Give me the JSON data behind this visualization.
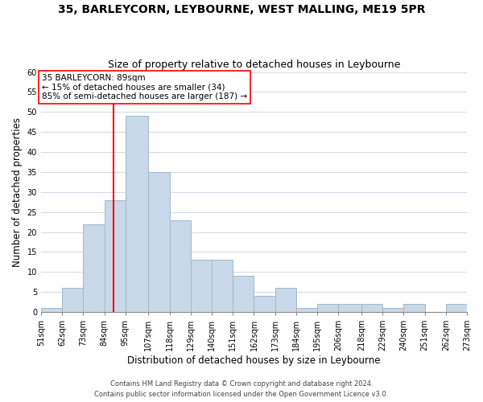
{
  "title": "35, BARLEYCORN, LEYBOURNE, WEST MALLING, ME19 5PR",
  "subtitle": "Size of property relative to detached houses in Leybourne",
  "xlabel": "Distribution of detached houses by size in Leybourne",
  "ylabel": "Number of detached properties",
  "bar_edges": [
    51,
    62,
    73,
    84,
    95,
    107,
    118,
    129,
    140,
    151,
    162,
    173,
    184,
    195,
    206,
    218,
    229,
    240,
    251,
    262,
    273
  ],
  "bar_heights": [
    1,
    6,
    22,
    28,
    49,
    35,
    23,
    13,
    13,
    9,
    4,
    6,
    1,
    2,
    2,
    2,
    1,
    2,
    0,
    2
  ],
  "bar_color": "#c8d8e8",
  "bar_edgecolor": "#a0b8cc",
  "ylim": [
    0,
    60
  ],
  "yticks": [
    0,
    5,
    10,
    15,
    20,
    25,
    30,
    35,
    40,
    45,
    50,
    55,
    60
  ],
  "redline_x": 89,
  "annotation_title": "35 BARLEYCORN: 89sqm",
  "annotation_line1": "← 15% of detached houses are smaller (34)",
  "annotation_line2": "85% of semi-detached houses are larger (187) →",
  "footer_line1": "Contains HM Land Registry data © Crown copyright and database right 2024.",
  "footer_line2": "Contains public sector information licensed under the Open Government Licence v3.0.",
  "background_color": "#ffffff",
  "grid_color": "#d0d8e8",
  "title_fontsize": 10,
  "subtitle_fontsize": 9,
  "tick_label_fontsize": 7,
  "xlabel_fontsize": 8.5,
  "ylabel_fontsize": 8.5,
  "footer_fontsize": 6
}
